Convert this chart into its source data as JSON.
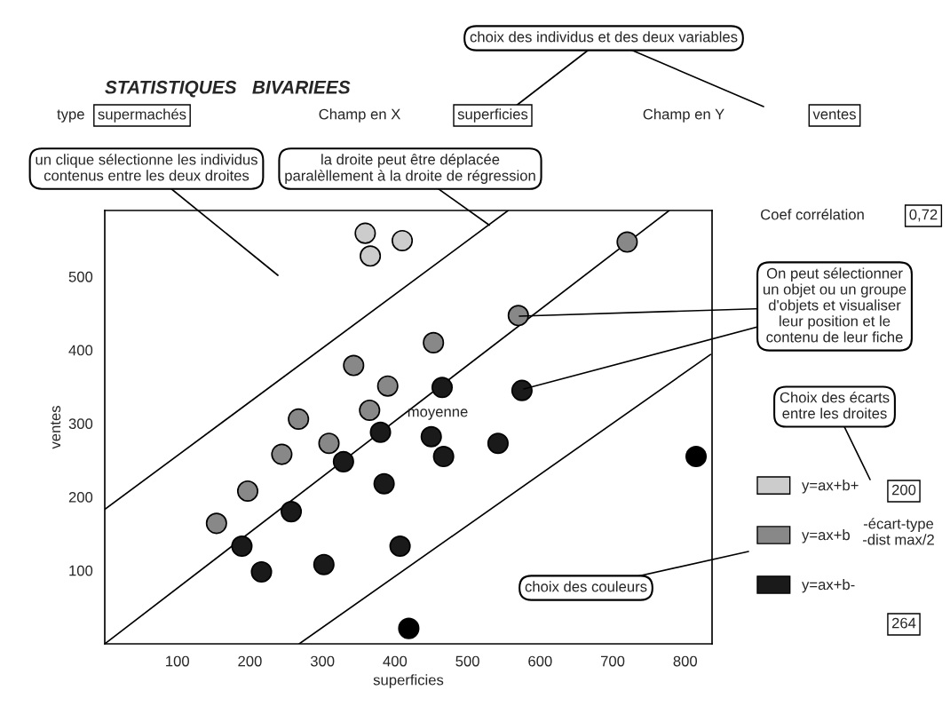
{
  "chart_data": {
    "type": "scatter",
    "title": "STATISTIQUES   BIVARIEES",
    "xlabel": "superficies",
    "ylabel": "ventes",
    "xlim": [
      0,
      837
    ],
    "ylim": [
      0,
      590
    ],
    "xticks": [
      100,
      200,
      300,
      400,
      500,
      600,
      700,
      800
    ],
    "yticks": [
      100,
      200,
      300,
      400,
      500
    ],
    "grid": false,
    "marker": "circle",
    "legend": "right",
    "series": [
      {
        "name": "y=ax+b+",
        "color": "#cccccc",
        "x": [
          359,
          366,
          410
        ],
        "values": [
          559,
          528,
          549
        ]
      },
      {
        "name": "y=ax+b",
        "color": "#888888",
        "x": [
          720,
          570,
          453,
          343,
          390,
          365,
          267,
          309,
          244,
          197,
          154
        ],
        "values": [
          547,
          447,
          410,
          379,
          351,
          318,
          306,
          273,
          258,
          208,
          164
        ]
      },
      {
        "name": "y=ax+b-",
        "color": "#1a1a1a",
        "x": [
          575,
          465,
          380,
          450,
          467,
          542,
          329,
          385,
          257,
          189,
          216,
          302,
          407
        ],
        "values": [
          345,
          349,
          288,
          282,
          255,
          273,
          248,
          218,
          180,
          133,
          98,
          108,
          133
        ]
      },
      {
        "color": "#000000",
        "x": [
          419,
          815
        ],
        "values": [
          21,
          255
        ]
      },
      {
        "type": "line",
        "marker": "none",
        "color": "#000000",
        "x": [
          0,
          556
        ],
        "values": [
          183,
          590
        ]
      },
      {
        "type": "line",
        "marker": "none",
        "color": "#000000",
        "x": [
          0,
          778
        ],
        "values": [
          0,
          590
        ]
      },
      {
        "type": "line",
        "marker": "none",
        "color": "#000000",
        "x": [
          268,
          835
        ],
        "values": [
          0,
          394
        ]
      }
    ],
    "annotations": [
      "choix des individus et des deux variables",
      "type",
      "supermachés",
      "Champ en X",
      "superficies",
      "Champ en Y",
      "ventes",
      "un clique sélectionne les individus\ncontenus entre les deux droites",
      {
        "text": "la droite peut être déplacée\nparalèllement à la droite de régression",
        "x": 530,
        "y": 570
      },
      "Coef corrélation",
      "0,72",
      "On peut sélectionner\nun objet ou un groupe\nd'objets et visualiser\nleur position et le\ncontenu de leur fiche",
      "moyenne",
      "Choix des écarts\nentre les droites",
      "200",
      "-écart-type\n-dist max/2",
      "choix des couleurs",
      "264"
    ]
  }
}
